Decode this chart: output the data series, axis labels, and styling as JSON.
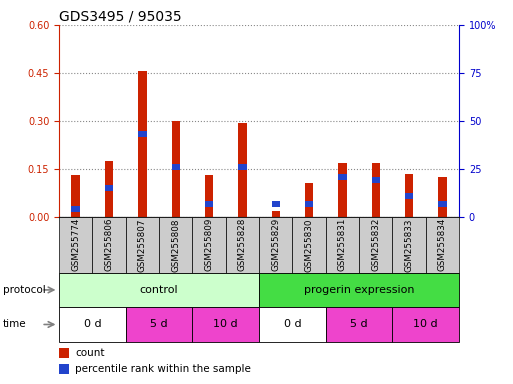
{
  "title": "GDS3495 / 95035",
  "samples": [
    "GSM255774",
    "GSM255806",
    "GSM255807",
    "GSM255808",
    "GSM255809",
    "GSM255828",
    "GSM255829",
    "GSM255830",
    "GSM255831",
    "GSM255832",
    "GSM255833",
    "GSM255834"
  ],
  "count_values": [
    0.13,
    0.175,
    0.455,
    0.3,
    0.13,
    0.295,
    0.02,
    0.105,
    0.17,
    0.17,
    0.135,
    0.125
  ],
  "percentile_values": [
    0.025,
    0.09,
    0.26,
    0.155,
    0.04,
    0.155,
    0.04,
    0.04,
    0.125,
    0.115,
    0.065,
    0.04
  ],
  "left_ylim": [
    0,
    0.6
  ],
  "right_ylim": [
    0,
    100
  ],
  "left_yticks": [
    0,
    0.15,
    0.3,
    0.45,
    0.6
  ],
  "right_yticks": [
    0,
    25,
    50,
    75,
    100
  ],
  "right_yticklabels": [
    "0",
    "25",
    "50",
    "75",
    "100%"
  ],
  "bar_color": "#cc2200",
  "percentile_color": "#2244cc",
  "bar_width": 0.25,
  "blue_marker_size": 0.018,
  "protocol_groups": [
    {
      "label": "control",
      "start": 0,
      "end": 6,
      "color": "#ccffcc"
    },
    {
      "label": "progerin expression",
      "start": 6,
      "end": 12,
      "color": "#44dd44"
    }
  ],
  "time_groups": [
    {
      "label": "0 d",
      "start": 0,
      "end": 2,
      "color": "#ffffff"
    },
    {
      "label": "5 d",
      "start": 2,
      "end": 4,
      "color": "#ee44cc"
    },
    {
      "label": "10 d",
      "start": 4,
      "end": 6,
      "color": "#ee44cc"
    },
    {
      "label": "0 d",
      "start": 6,
      "end": 8,
      "color": "#ffffff"
    },
    {
      "label": "5 d",
      "start": 8,
      "end": 10,
      "color": "#ee44cc"
    },
    {
      "label": "10 d",
      "start": 10,
      "end": 12,
      "color": "#ee44cc"
    }
  ],
  "legend_items": [
    {
      "label": "count",
      "color": "#cc2200"
    },
    {
      "label": "percentile rank within the sample",
      "color": "#2244cc"
    }
  ],
  "grid_color": "#888888",
  "background_color": "#ffffff",
  "sample_bg_color": "#cccccc",
  "title_fontsize": 10,
  "tick_fontsize": 7,
  "label_fontsize": 7.5
}
